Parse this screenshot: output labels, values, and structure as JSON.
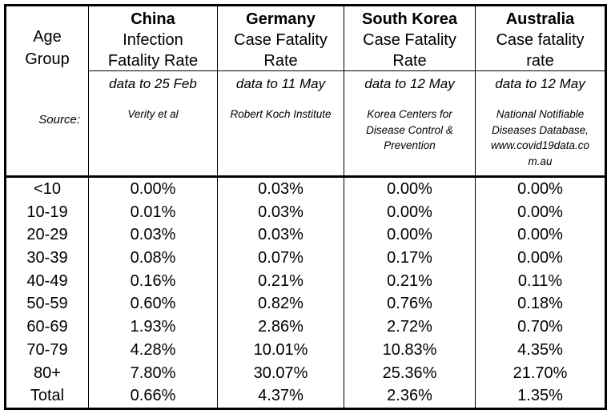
{
  "colors": {
    "text": "#000000",
    "border": "#000000",
    "background": "#ffffff"
  },
  "table": {
    "age_header_lines": [
      "Age",
      "Group"
    ],
    "source_label": "Source:",
    "age_groups": [
      "<10",
      "10-19",
      "20-29",
      "30-39",
      "40-49",
      "50-59",
      "60-69",
      "70-79",
      "80+",
      "Total"
    ],
    "columns": [
      {
        "country": "China",
        "measure_lines": [
          "Infection",
          "Fatality Rate"
        ],
        "data_to": "data to 25 Feb",
        "source_lines": [
          "Verity et al",
          "",
          "",
          ""
        ],
        "values": [
          "0.00%",
          "0.01%",
          "0.03%",
          "0.08%",
          "0.16%",
          "0.60%",
          "1.93%",
          "4.28%",
          "7.80%",
          "0.66%"
        ]
      },
      {
        "country": "Germany",
        "measure_lines": [
          "Case Fatality",
          "Rate"
        ],
        "data_to": "data to 11 May",
        "source_lines": [
          "Robert Koch Institute",
          "",
          "",
          ""
        ],
        "values": [
          "0.03%",
          "0.03%",
          "0.03%",
          "0.07%",
          "0.21%",
          "0.82%",
          "2.86%",
          "10.01%",
          "30.07%",
          "4.37%"
        ]
      },
      {
        "country": "South Korea",
        "measure_lines": [
          "Case Fatality",
          "Rate"
        ],
        "data_to": "data to 12 May",
        "source_lines": [
          "Korea Centers for",
          "Disease Control &",
          "Prevention",
          ""
        ],
        "values": [
          "0.00%",
          "0.00%",
          "0.00%",
          "0.17%",
          "0.21%",
          "0.76%",
          "2.72%",
          "10.83%",
          "25.36%",
          "2.36%"
        ]
      },
      {
        "country": "Australia",
        "measure_lines": [
          "Case fatality",
          "rate"
        ],
        "data_to": "data to 12 May",
        "source_lines": [
          "National Notifiable",
          "Diseases Database,",
          "www.covid19data.co",
          "m.au"
        ],
        "values": [
          "0.00%",
          "0.00%",
          "0.00%",
          "0.00%",
          "0.11%",
          "0.18%",
          "0.70%",
          "4.35%",
          "21.70%",
          "1.35%"
        ]
      }
    ]
  },
  "chart_data": {
    "type": "table",
    "title": "",
    "columns": [
      "Age Group",
      "China Infection Fatality Rate",
      "Germany Case Fatality Rate",
      "South Korea Case Fatality Rate",
      "Australia Case fatality rate"
    ],
    "categories": [
      "<10",
      "10-19",
      "20-29",
      "30-39",
      "40-49",
      "50-59",
      "60-69",
      "70-79",
      "80+",
      "Total"
    ],
    "series": [
      {
        "name": "China",
        "metric": "Infection Fatality Rate",
        "data_window": "data to 25 Feb",
        "source": "Verity et al",
        "values_pct": [
          0.0,
          0.01,
          0.03,
          0.08,
          0.16,
          0.6,
          1.93,
          4.28,
          7.8,
          0.66
        ]
      },
      {
        "name": "Germany",
        "metric": "Case Fatality Rate",
        "data_window": "data to 11 May",
        "source": "Robert Koch Institute",
        "values_pct": [
          0.03,
          0.03,
          0.03,
          0.07,
          0.21,
          0.82,
          2.86,
          10.01,
          30.07,
          4.37
        ]
      },
      {
        "name": "South Korea",
        "metric": "Case Fatality Rate",
        "data_window": "data to 12 May",
        "source": "Korea Centers for Disease Control & Prevention",
        "values_pct": [
          0.0,
          0.0,
          0.0,
          0.17,
          0.21,
          0.76,
          2.72,
          10.83,
          25.36,
          2.36
        ]
      },
      {
        "name": "Australia",
        "metric": "Case fatality rate",
        "data_window": "data to 12 May",
        "source": "National Notifiable Diseases Database, www.covid19data.com.au",
        "values_pct": [
          0.0,
          0.0,
          0.0,
          0.0,
          0.11,
          0.18,
          0.7,
          4.35,
          21.7,
          1.35
        ]
      }
    ]
  }
}
